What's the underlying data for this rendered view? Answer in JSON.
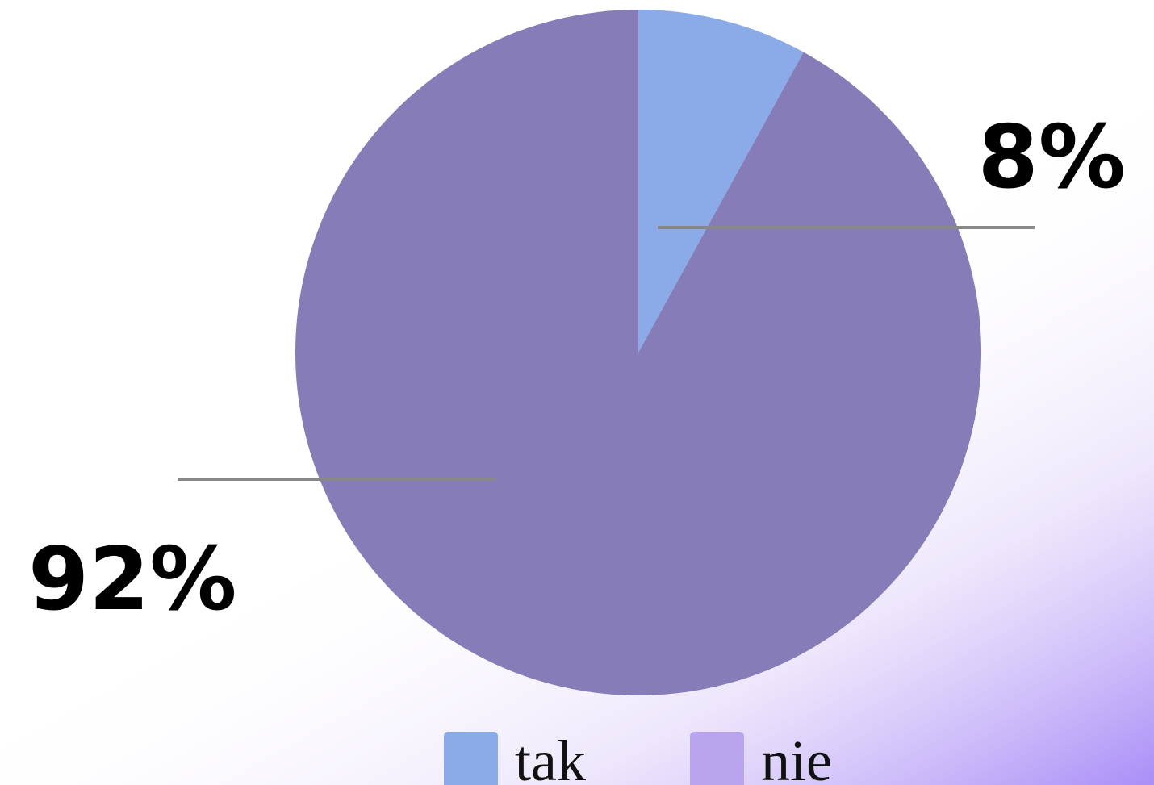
{
  "chart_data": {
    "type": "pie",
    "categories": [
      "tak",
      "nie"
    ],
    "values": [
      8,
      92
    ],
    "value_labels": [
      "8%",
      "92%"
    ],
    "colors": [
      "#8aaae8",
      "#857cb8"
    ],
    "legend_colors": [
      "#8aaae8",
      "#b9a5ee"
    ]
  }
}
